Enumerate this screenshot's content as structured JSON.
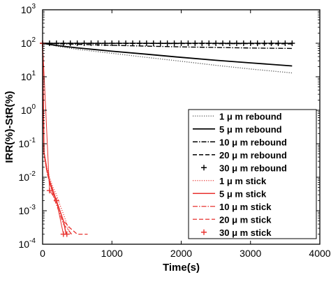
{
  "chart_data": {
    "type": "line",
    "xlabel": "Time(s)",
    "ylabel": "IRR(%)-StR(%)",
    "xlim": [
      0,
      4000
    ],
    "ylim": [
      0.0001,
      1000
    ],
    "yscale": "log",
    "grid": false,
    "legend_position": "lower-right",
    "x_ticks": [
      "0",
      "1000",
      "2000",
      "3000",
      "4000"
    ],
    "y_ticks": [
      {
        "value": 0.0001,
        "base": "10",
        "exp": "-4"
      },
      {
        "value": 0.001,
        "base": "10",
        "exp": "-3"
      },
      {
        "value": 0.01,
        "base": "10",
        "exp": "-2"
      },
      {
        "value": 0.1,
        "base": "10",
        "exp": "-1"
      },
      {
        "value": 1,
        "base": "10",
        "exp": "0"
      },
      {
        "value": 10,
        "base": "10",
        "exp": "1"
      },
      {
        "value": 100,
        "base": "10",
        "exp": "2"
      },
      {
        "value": 1000,
        "base": "10",
        "exp": "3"
      }
    ],
    "series": [
      {
        "name": "1 μ m rebound",
        "color": "#555555",
        "dash": "1.2,2",
        "width": 1.3,
        "marker": "none",
        "x": [
          0,
          200,
          500,
          1000,
          1500,
          2000,
          2500,
          3000,
          3600
        ],
        "y": [
          100,
          82,
          66,
          50,
          38,
          29,
          22,
          17,
          13
        ]
      },
      {
        "name": "5 μ m rebound",
        "color": "#000000",
        "dash": "",
        "width": 1.8,
        "marker": "none",
        "x": [
          0,
          200,
          500,
          1000,
          1500,
          2000,
          2500,
          3000,
          3600
        ],
        "y": [
          100,
          86,
          73,
          58,
          47,
          38,
          31,
          26,
          21
        ]
      },
      {
        "name": "10 μ m rebound",
        "color": "#000000",
        "dash": "7,2,1.5,2",
        "width": 1.4,
        "marker": "none",
        "x": [
          0,
          500,
          1000,
          1500,
          2000,
          2500,
          3000,
          3600
        ],
        "y": [
          100,
          93,
          87,
          82,
          78,
          75,
          72,
          70
        ]
      },
      {
        "name": "20 μ m rebound",
        "color": "#000000",
        "dash": "6,3",
        "width": 1.4,
        "marker": "none",
        "x": [
          0,
          1000,
          2000,
          3000,
          3600
        ],
        "y": [
          100,
          99,
          98,
          97,
          96
        ]
      },
      {
        "name": "30 μ m rebound",
        "color": "#000000",
        "dash": "",
        "width": 1.2,
        "marker": "plus",
        "x": [
          0,
          100,
          200,
          300,
          400,
          500,
          600,
          700,
          800,
          900,
          1000,
          1100,
          1200,
          1300,
          1400,
          1500,
          1600,
          1700,
          1800,
          1900,
          2000,
          2100,
          2200,
          2300,
          2400,
          2500,
          2600,
          2700,
          2800,
          2900,
          3000,
          3100,
          3200,
          3300,
          3400,
          3500,
          3600
        ],
        "y": [
          100,
          100,
          100,
          100,
          100,
          100,
          100,
          100,
          100,
          100,
          100,
          100,
          100,
          100,
          100,
          100,
          100,
          100,
          100,
          100,
          100,
          100,
          100,
          100,
          100,
          100,
          100,
          100,
          100,
          100,
          100,
          100,
          100,
          100,
          100,
          100,
          100
        ]
      },
      {
        "name": "1 μ m stick",
        "color": "#e8322f",
        "dash": "1.2,2",
        "width": 1.2,
        "marker": "none",
        "x": [
          0,
          20,
          60,
          100,
          150,
          200,
          250,
          300,
          350,
          400
        ],
        "y": [
          100,
          0.06,
          0.02,
          0.01,
          0.005,
          0.003,
          0.0015,
          0.0008,
          0.0004,
          0.0002
        ]
      },
      {
        "name": "5 μ m stick",
        "color": "#e8322f",
        "dash": "",
        "width": 1.5,
        "marker": "none",
        "x": [
          0,
          20,
          60,
          100,
          150,
          200,
          250,
          300,
          340
        ],
        "y": [
          100,
          0.055,
          0.018,
          0.008,
          0.004,
          0.002,
          0.001,
          0.0005,
          0.0002
        ]
      },
      {
        "name": "10 μ m stick",
        "color": "#e8322f",
        "dash": "7,2,1.5,2",
        "width": 1.2,
        "marker": "none",
        "x": [
          0,
          20,
          60,
          100,
          150,
          200,
          250,
          300,
          350,
          420
        ],
        "y": [
          100,
          0.05,
          0.015,
          0.007,
          0.003,
          0.0015,
          0.0008,
          0.0004,
          0.0003,
          0.0002
        ]
      },
      {
        "name": "20 μ m stick",
        "color": "#e8322f",
        "dash": "6,3",
        "width": 1.3,
        "marker": "none",
        "x": [
          0,
          20,
          60,
          100,
          150,
          200,
          250,
          300,
          400,
          500,
          650
        ],
        "y": [
          100,
          0.05,
          0.016,
          0.007,
          0.0035,
          0.002,
          0.001,
          0.0005,
          0.0003,
          0.0002,
          0.0002
        ]
      },
      {
        "name": "30 μ m stick",
        "color": "#e8322f",
        "dash": "",
        "width": 1.0,
        "marker": "plus",
        "x": [
          0,
          100,
          200,
          300,
          350
        ],
        "y": [
          100,
          0.004,
          0.002,
          0.0002,
          0.0002
        ]
      }
    ]
  }
}
